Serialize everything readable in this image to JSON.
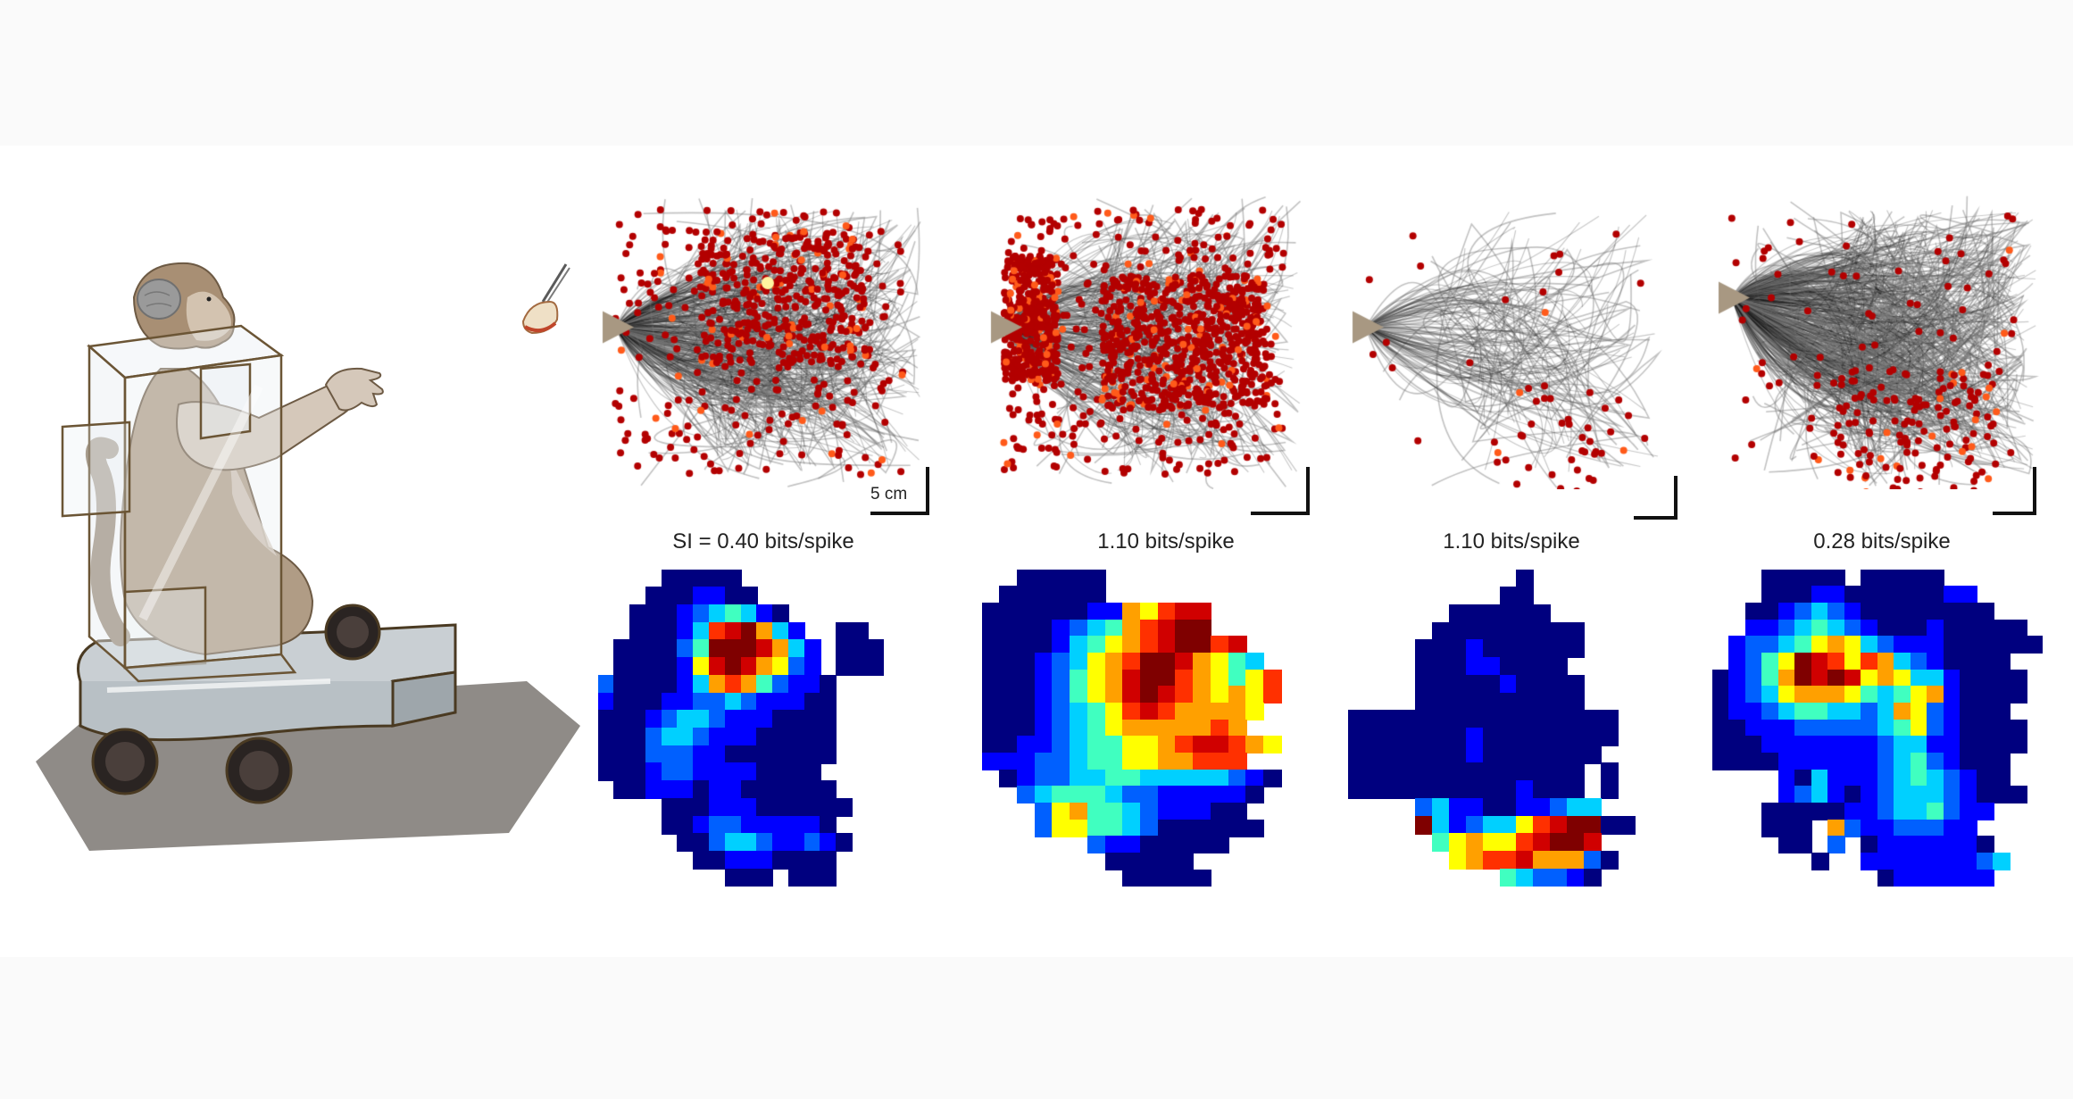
{
  "figure": {
    "illustration": {
      "subject": "monkey-in-mobile-chair",
      "elements": [
        "monkey",
        "brain-overlay",
        "transparent-chair-box",
        "wheeled-cart",
        "food-reward-with-tweezers"
      ]
    },
    "scale": {
      "label": "5 cm"
    },
    "panels": [
      {
        "si_label": "SI = 0.40 bits/spike",
        "trajectory": {
          "density": "high",
          "spike_density": "high",
          "hotspot": "upper-center"
        },
        "heatmap": {
          "rows": [
            "....00000.........",
            "...0001100........",
            "..0001234310......",
            "..00013789631..00.",
            ".0000249998631.000",
            ".0000158986521.000",
            "200001367642110...",
            "100011223211100...",
            "000123321110000...",
            "000233211100000...",
            "000222110000000...",
            "00012211110000....",
            ".00111011000000...",
            "....000111000000..",
            "....00122111110...",
            ".....00233211210..",
            "......001110000...",
            "........000.000..."
          ]
        }
      },
      {
        "si_label": "1.10 bits/spike",
        "trajectory": {
          "density": "medium",
          "spike_density": "very-high",
          "hotspot": "diagonal-spread"
        },
        "heatmap": {
          "rows": [
            "..00000...........",
            ".000000...........",
            "0000001165788.....",
            "0000123467899.....",
            "000013456789978...",
            "0001235679986543..",
            "00012456899765457.",
            "00012456898765657.",
            "0001234578766665..",
            "000123456666676...",
            "00112344556788765.",
            "111223445566777...",
            ".0122334433333210.",
            "..23444322111110..",
            "...256443211100...",
            "...2554432000000..",
            "......21100000....",
            ".......00000......",
            "........00000....."
          ]
        }
      },
      {
        "si_label": "1.10 bits/spike",
        "trajectory": {
          "density": "low",
          "spike_density": "low",
          "hotspot": "lower-right"
        },
        "heatmap": {
          "rows": [
            "..........0.......",
            ".........00.......",
            "......000000......",
            ".....000000000....",
            "....0001000000....",
            "....000110000.....",
            "....0000010000....",
            "....0000000000....",
            "0000000000000000..",
            "0000000100000000..",
            "000000010000000...",
            "00000000000000.0..",
            "00000000001000.0..",
            "....23110011233...",
            "....9312335789900.",
            ".....4565578998...",
            "......5677866620..",
            ".........432210..."
          ]
        }
      },
      {
        "si_label": "0.28 bits/spike",
        "trajectory": {
          "density": "very-high",
          "spike_density": "medium",
          "hotspot": "lower-center"
        },
        "heatmap": {
          "rows": [
            "...00000.00000.....",
            "...0001100000011...",
            "..001232100000000..",
            "..11234321000100000",
            ".1223456532111000000",
            ".12459875763210000",
            "0124698985653310000",
            "0123566654345610000",
            "011234433236521000",
            "0011122222345210000",
            "0001111111233110000",
            "000011111123421000",
            "....10311123432100",
            "....123101233321000",
            "...00000112334211..",
            "...000.621122211...",
            "....00.2.01111110..",
            "......0..111111123.",
            "..........0111111..."
          ]
        }
      }
    ],
    "colormap": {
      "name": "jet",
      "stops": [
        "#00007f",
        "#0000ff",
        "#0060ff",
        "#00d0ff",
        "#40ffc0",
        "#a0ff60",
        "#ffff00",
        "#ffa000",
        "#ff3000",
        "#d00000",
        "#7f0000"
      ]
    },
    "colors": {
      "trajectory_dense": "#000000",
      "trajectory_sparse": "#8a8a8a",
      "spike_primary": "#b30000",
      "spike_secondary": "#ff5a1a",
      "spike_peak": "#fff4a0",
      "start_marker": "#a89882",
      "background": "#ffffff",
      "band": "#fafafa"
    }
  }
}
